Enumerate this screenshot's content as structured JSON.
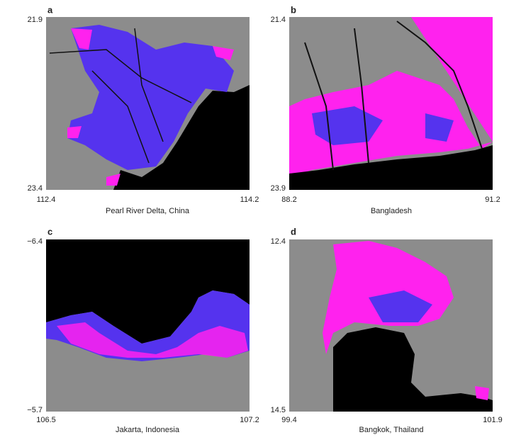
{
  "panels": [
    {
      "letter": "a",
      "top": "21.9",
      "bottom": "23.4",
      "left": "112.4",
      "right": "114.2",
      "caption": "Pearl River Delta, China"
    },
    {
      "letter": "b",
      "top": "21.4",
      "bottom": "23.9",
      "left": "88.2",
      "right": "91.2",
      "caption": "Bangladesh"
    },
    {
      "letter": "c",
      "top": "−6.4",
      "bottom": "−5.7",
      "left": "106.5",
      "right": "107.2",
      "caption": "Jakarta, Indonesia"
    },
    {
      "letter": "d",
      "top": "12.4",
      "bottom": "14.5",
      "left": "99.4",
      "right": "101.9",
      "caption": "Bangkok, Thailand"
    }
  ]
}
